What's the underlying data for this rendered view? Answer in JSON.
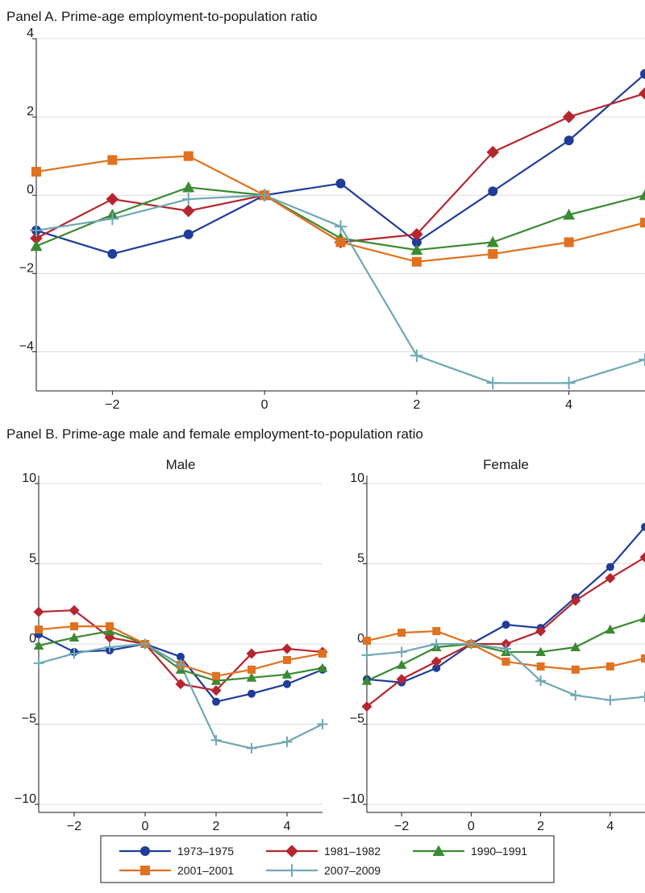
{
  "chart_data": [
    {
      "type": "line",
      "title": "Panel A. Prime-age employment-to-population ratio",
      "subtitle": "",
      "xlabel": "",
      "ylabel": "",
      "x": [
        -3,
        -2,
        -1,
        0,
        1,
        2,
        3,
        4,
        5
      ],
      "xticks": [
        -2,
        0,
        2,
        4
      ],
      "yticks": [
        -4,
        -2,
        0,
        2,
        4
      ],
      "xlim": [
        -3,
        5
      ],
      "ylim": [
        -5,
        4
      ],
      "grid": true,
      "series": [
        {
          "name": "1973–1975",
          "color": "#1f3c99",
          "marker": "circle",
          "values": [
            -0.9,
            -1.5,
            -1.0,
            0.0,
            0.3,
            -1.2,
            0.1,
            1.4,
            3.1
          ]
        },
        {
          "name": "1981–1982",
          "color": "#b5262f",
          "marker": "diamond",
          "values": [
            -1.1,
            -0.1,
            -0.4,
            0.0,
            -1.2,
            -1.0,
            1.1,
            2.0,
            2.6
          ]
        },
        {
          "name": "1990–1991",
          "color": "#3a8a32",
          "marker": "triangle",
          "values": [
            -1.3,
            -0.5,
            0.2,
            0.0,
            -1.1,
            -1.4,
            -1.2,
            -0.5,
            0.0
          ]
        },
        {
          "name": "2001–2001",
          "color": "#e0711e",
          "marker": "square",
          "values": [
            0.6,
            0.9,
            1.0,
            0.0,
            -1.2,
            -1.7,
            -1.5,
            -1.2,
            -0.7
          ]
        },
        {
          "name": "2007–2009",
          "color": "#6fa8b3",
          "marker": "plus",
          "values": [
            -0.9,
            -0.6,
            -0.1,
            0.0,
            -0.8,
            -4.1,
            -4.8,
            -4.8,
            -4.2
          ]
        }
      ]
    },
    {
      "type": "line",
      "title": "Panel B. Prime-age male and female employment-to-population ratio",
      "subtitle": "Male",
      "xlabel": "",
      "ylabel": "",
      "x": [
        -3,
        -2,
        -1,
        0,
        1,
        2,
        3,
        4,
        5
      ],
      "xticks": [
        -2,
        0,
        2,
        4
      ],
      "yticks": [
        -10,
        -5,
        0,
        5,
        10
      ],
      "xlim": [
        -3,
        5
      ],
      "ylim": [
        -10.5,
        10.5
      ],
      "grid": true,
      "series": [
        {
          "name": "1973–1975",
          "color": "#1f3c99",
          "marker": "circle",
          "values": [
            0.6,
            -0.5,
            -0.4,
            0.0,
            -0.8,
            -3.6,
            -3.1,
            -2.5,
            -1.6
          ]
        },
        {
          "name": "1981–1982",
          "color": "#b5262f",
          "marker": "diamond",
          "values": [
            2.0,
            2.1,
            0.4,
            0.0,
            -2.5,
            -2.9,
            -0.6,
            -0.3,
            -0.5
          ]
        },
        {
          "name": "1990–1991",
          "color": "#3a8a32",
          "marker": "triangle",
          "values": [
            -0.1,
            0.4,
            0.8,
            0.0,
            -1.6,
            -2.3,
            -2.1,
            -1.9,
            -1.5
          ]
        },
        {
          "name": "2001–2001",
          "color": "#e0711e",
          "marker": "square",
          "values": [
            0.9,
            1.1,
            1.1,
            0.0,
            -1.3,
            -2.0,
            -1.6,
            -1.0,
            -0.6
          ]
        },
        {
          "name": "2007–2009",
          "color": "#6fa8b3",
          "marker": "plus",
          "values": [
            -1.2,
            -0.6,
            -0.2,
            0.0,
            -1.3,
            -6.0,
            -6.5,
            -6.1,
            -5.0
          ]
        }
      ]
    },
    {
      "type": "line",
      "title": "",
      "subtitle": "Female",
      "xlabel": "",
      "ylabel": "",
      "x": [
        -3,
        -2,
        -1,
        0,
        1,
        2,
        3,
        4,
        5
      ],
      "xticks": [
        -2,
        0,
        2,
        4
      ],
      "yticks": [
        -10,
        -5,
        0,
        5,
        10
      ],
      "xlim": [
        -3,
        5
      ],
      "ylim": [
        -10.5,
        10.5
      ],
      "grid": true,
      "series": [
        {
          "name": "1973–1975",
          "color": "#1f3c99",
          "marker": "circle",
          "values": [
            -2.2,
            -2.4,
            -1.5,
            0.0,
            1.2,
            1.0,
            2.9,
            4.8,
            7.3
          ]
        },
        {
          "name": "1981–1982",
          "color": "#b5262f",
          "marker": "diamond",
          "values": [
            -3.9,
            -2.2,
            -1.1,
            0.0,
            0.0,
            0.8,
            2.7,
            4.1,
            5.4
          ]
        },
        {
          "name": "1990–1991",
          "color": "#3a8a32",
          "marker": "triangle",
          "values": [
            -2.3,
            -1.3,
            -0.2,
            0.0,
            -0.5,
            -0.5,
            -0.2,
            0.9,
            1.6
          ]
        },
        {
          "name": "2001–2001",
          "color": "#e0711e",
          "marker": "square",
          "values": [
            0.2,
            0.7,
            0.8,
            0.0,
            -1.1,
            -1.4,
            -1.6,
            -1.4,
            -0.9
          ]
        },
        {
          "name": "2007–2009",
          "color": "#6fa8b3",
          "marker": "plus",
          "values": [
            -0.7,
            -0.5,
            0.0,
            0.0,
            -0.3,
            -2.3,
            -3.2,
            -3.5,
            -3.3
          ]
        }
      ]
    }
  ],
  "legend": {
    "placement": "bottom",
    "items": [
      {
        "label": "1973–1975",
        "color": "#1f3c99",
        "marker": "circle"
      },
      {
        "label": "1981–1982",
        "color": "#b5262f",
        "marker": "diamond"
      },
      {
        "label": "1990–1991",
        "color": "#3a8a32",
        "marker": "triangle"
      },
      {
        "label": "2001–2001",
        "color": "#e0711e",
        "marker": "square"
      },
      {
        "label": "2007–2009",
        "color": "#6fa8b3",
        "marker": "plus"
      }
    ]
  }
}
